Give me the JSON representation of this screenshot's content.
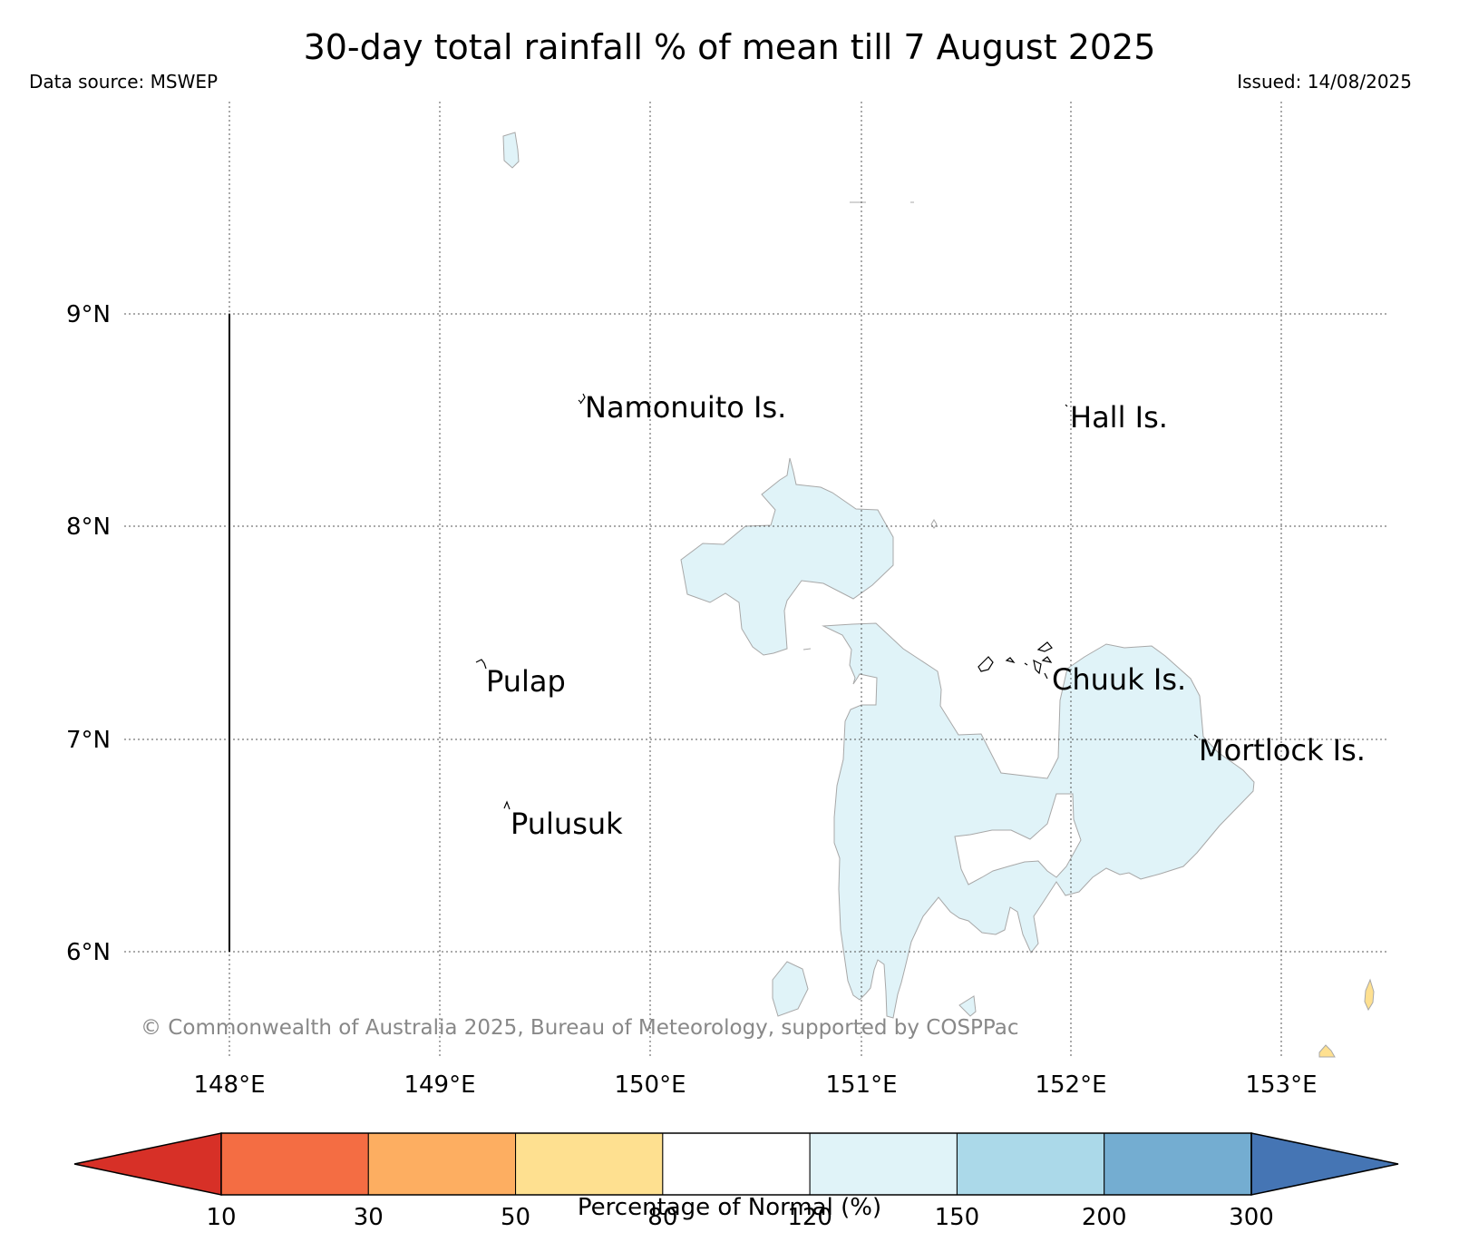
{
  "title": "30-day total rainfall % of mean till 7 August 2025",
  "data_source": "Data source: MSWEP",
  "issued": "Issued: 14/08/2025",
  "copyright": "© Commonwealth of Australia 2025, Bureau of Meteorology, supported by COSPPac",
  "map": {
    "lon_ticks": [
      "148°E",
      "149°E",
      "150°E",
      "151°E",
      "152°E",
      "153°E"
    ],
    "lat_ticks": [
      "9°N",
      "8°N",
      "7°N",
      "6°N"
    ],
    "place_labels": [
      "Namonuito Is.",
      "Hall Is.",
      "Pulap",
      "Chuuk Is.",
      "Mortlock Is.",
      "Pulusuk"
    ],
    "dominant_category": "120–150",
    "colors": {
      "wet_fill": "#e0f3f8",
      "dry_fill": "#fee090",
      "outline": "#a8a8a8",
      "grid": "#555555"
    }
  },
  "colorbar": {
    "label": "Percentage of Normal (%)",
    "ticks": [
      "10",
      "30",
      "50",
      "80",
      "120",
      "150",
      "200",
      "300"
    ],
    "low_extend_color": "#d73027",
    "high_extend_color": "#4575b4",
    "segment_colors": [
      "#f46d43",
      "#fdae61",
      "#fee090",
      "#ffffff",
      "#e0f3f8",
      "#abd9e9",
      "#74add1"
    ]
  }
}
